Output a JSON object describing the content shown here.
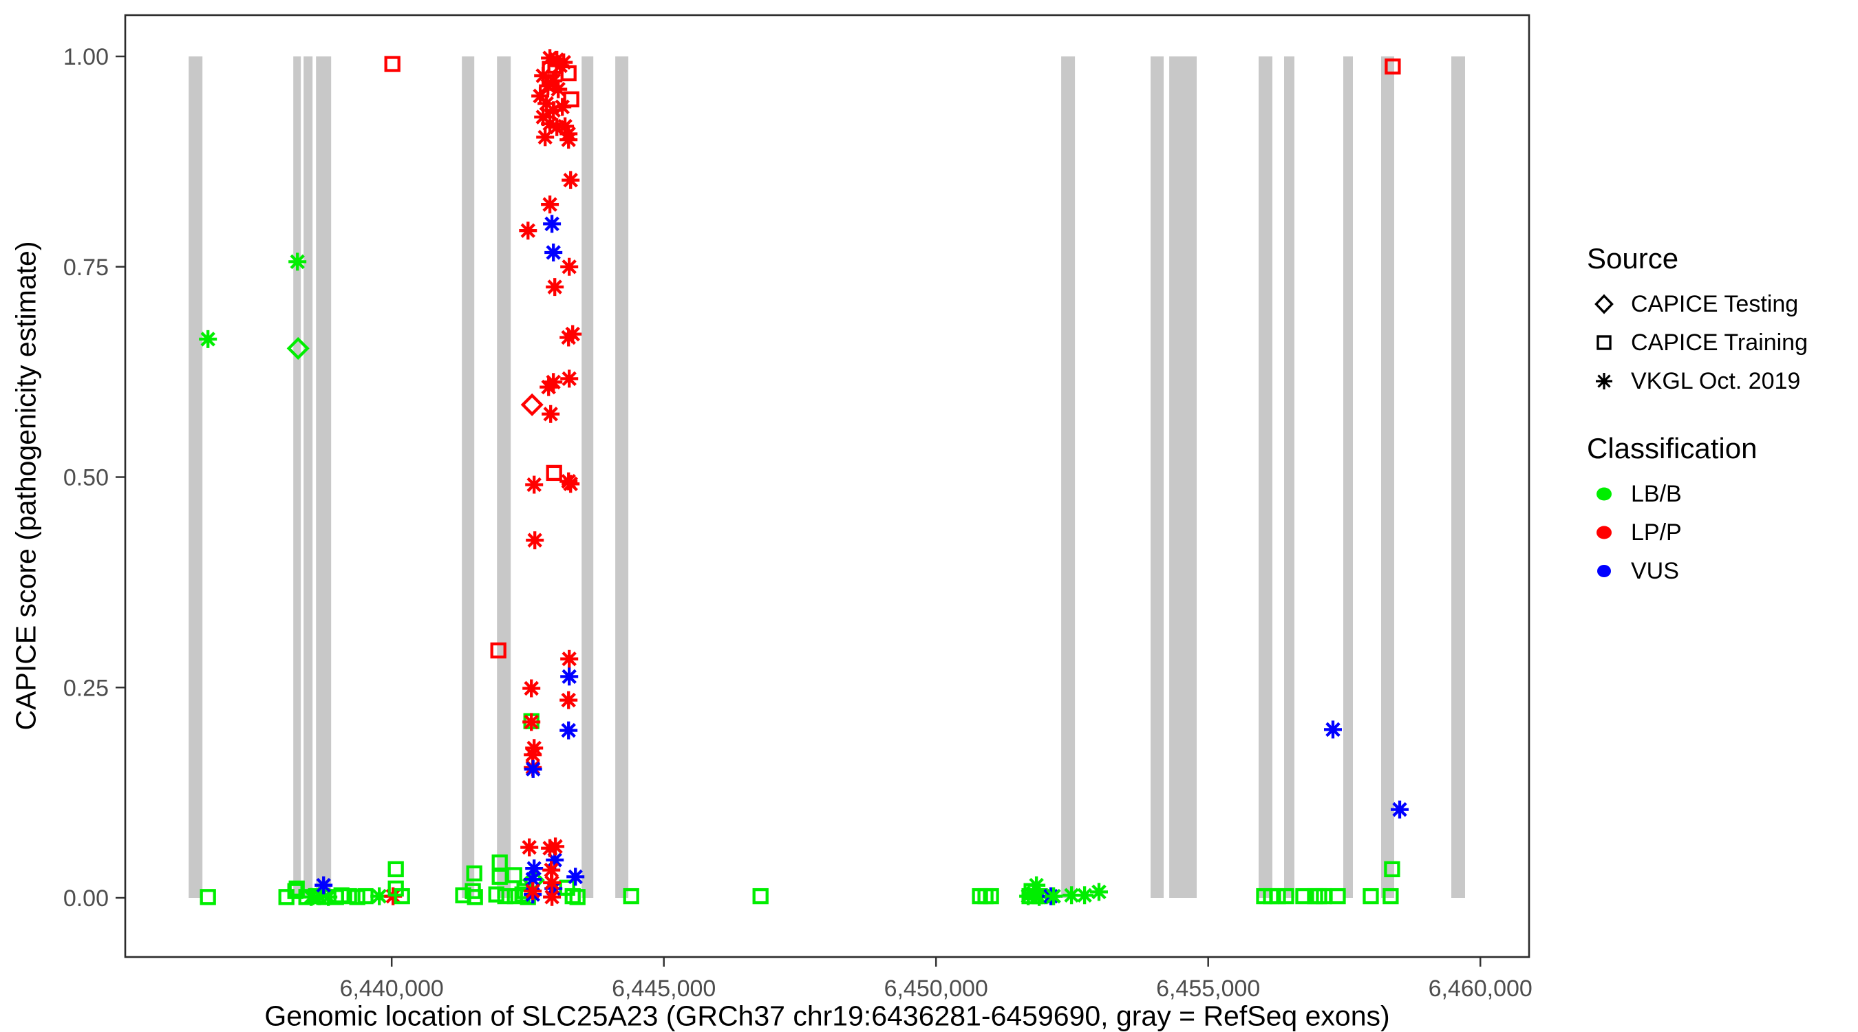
{
  "figure": {
    "y_axis_title": "CAPICE score (pathogenicity estimate)",
    "x_axis_title": "Genomic location of SLC25A23 (GRCh37 chr19:6436281-6459690, gray = RefSeq exons)",
    "colors": {
      "lbb": "#00EE00",
      "lpp": "#FF0000",
      "vus": "#0000FF",
      "exon": "#C8C8C8",
      "tick_text": "#4D4D4D",
      "axis": "#333333"
    }
  },
  "legend": {
    "source_title": "Source",
    "source_items": [
      {
        "shape": "diamond",
        "label": "CAPICE Testing"
      },
      {
        "shape": "square",
        "label": "CAPICE Training"
      },
      {
        "shape": "asterisk",
        "label": "VKGL Oct. 2019"
      }
    ],
    "classification_title": "Classification",
    "classification_items": [
      {
        "color_key": "lbb",
        "label": "LB/B"
      },
      {
        "color_key": "lpp",
        "label": "LP/P"
      },
      {
        "color_key": "vus",
        "label": "VUS"
      }
    ]
  },
  "chart_data": {
    "type": "scatter",
    "title": "",
    "xlabel": "Genomic location of SLC25A23 (GRCh37 chr19:6436281-6459690, gray = RefSeq exons)",
    "ylabel": "CAPICE score (pathogenicity estimate)",
    "grid": false,
    "legend_position": "right",
    "x_domain": [
      6435105,
      6460895
    ],
    "y_domain": [
      -0.07,
      1.05
    ],
    "x_ticks": [
      {
        "value": 6440000,
        "label": "6,440,000"
      },
      {
        "value": 6445000,
        "label": "6,445,000"
      },
      {
        "value": 6450000,
        "label": "6,450,000"
      },
      {
        "value": 6455000,
        "label": "6,455,000"
      },
      {
        "value": 6460000,
        "label": "6,460,000"
      }
    ],
    "y_ticks": [
      {
        "value": 0.0,
        "label": "0.00"
      },
      {
        "value": 0.25,
        "label": "0.25"
      },
      {
        "value": 0.5,
        "label": "0.50"
      },
      {
        "value": 0.75,
        "label": "0.75"
      },
      {
        "value": 1.0,
        "label": "1.00"
      }
    ],
    "exons_bp": [
      [
        6436271,
        6436524
      ],
      [
        6438192,
        6438331
      ],
      [
        6438382,
        6438546
      ],
      [
        6438609,
        6438887
      ],
      [
        6441289,
        6441517
      ],
      [
        6441934,
        6442187
      ],
      [
        6443489,
        6443704
      ],
      [
        6444108,
        6444348
      ],
      [
        6452299,
        6452552
      ],
      [
        6453942,
        6454182
      ],
      [
        6454284,
        6454789
      ],
      [
        6455927,
        6456180
      ],
      [
        6456395,
        6456585
      ],
      [
        6457482,
        6457659
      ],
      [
        6458177,
        6458417
      ],
      [
        6459466,
        6459719
      ]
    ],
    "exon_y_range": [
      0.0,
      1.0
    ],
    "points": [
      {
        "x": 6436625,
        "y": 0.664,
        "s": "a",
        "c": "lbb"
      },
      {
        "x": 6436625,
        "y": 0.001,
        "s": "q",
        "c": "lbb"
      },
      {
        "x": 6438268,
        "y": 0.756,
        "s": "a",
        "c": "lbb"
      },
      {
        "x": 6438281,
        "y": 0.653,
        "s": "d",
        "c": "lbb"
      },
      {
        "x": 6438066,
        "y": 0.001,
        "s": "q",
        "c": "lbb"
      },
      {
        "x": 6438230,
        "y": 0.008,
        "s": "q",
        "c": "lbb"
      },
      {
        "x": 6438256,
        "y": 0.011,
        "s": "q",
        "c": "lbb"
      },
      {
        "x": 6438432,
        "y": 0.001,
        "s": "q",
        "c": "lbb"
      },
      {
        "x": 6438609,
        "y": 0.002,
        "s": "q",
        "c": "lbb"
      },
      {
        "x": 6438761,
        "y": 0.001,
        "s": "q",
        "c": "lbb"
      },
      {
        "x": 6438976,
        "y": 0.001,
        "s": "q",
        "c": "lbb"
      },
      {
        "x": 6439077,
        "y": 0.003,
        "s": "q",
        "c": "lbb"
      },
      {
        "x": 6439216,
        "y": 0.002,
        "s": "q",
        "c": "lbb"
      },
      {
        "x": 6439368,
        "y": 0.001,
        "s": "q",
        "c": "lbb"
      },
      {
        "x": 6439519,
        "y": 0.002,
        "s": "q",
        "c": "lbb"
      },
      {
        "x": 6438521,
        "y": 0.001,
        "s": "a",
        "c": "lbb"
      },
      {
        "x": 6438672,
        "y": 0.002,
        "s": "a",
        "c": "lbb"
      },
      {
        "x": 6438837,
        "y": 0.001,
        "s": "a",
        "c": "lbb"
      },
      {
        "x": 6438748,
        "y": 0.015,
        "s": "a",
        "c": "vus"
      },
      {
        "x": 6439772,
        "y": 0.002,
        "s": "a",
        "c": "lbb"
      },
      {
        "x": 6440025,
        "y": 0.002,
        "s": "a",
        "c": "lpp"
      },
      {
        "x": 6440076,
        "y": 0.034,
        "s": "q",
        "c": "lbb"
      },
      {
        "x": 6440076,
        "y": 0.011,
        "s": "q",
        "c": "lbb"
      },
      {
        "x": 6440190,
        "y": 0.002,
        "s": "q",
        "c": "lbb"
      },
      {
        "x": 6440013,
        "y": 0.991,
        "s": "q",
        "c": "lpp"
      },
      {
        "x": 6441314,
        "y": 0.003,
        "s": "q",
        "c": "lbb"
      },
      {
        "x": 6441517,
        "y": 0.029,
        "s": "q",
        "c": "lbb"
      },
      {
        "x": 6441491,
        "y": 0.008,
        "s": "q",
        "c": "lbb"
      },
      {
        "x": 6441530,
        "y": 0.001,
        "s": "q",
        "c": "lbb"
      },
      {
        "x": 6441985,
        "y": 0.042,
        "s": "q",
        "c": "lbb"
      },
      {
        "x": 6441985,
        "y": 0.025,
        "s": "q",
        "c": "lbb"
      },
      {
        "x": 6442250,
        "y": 0.027,
        "s": "q",
        "c": "lbb"
      },
      {
        "x": 6441922,
        "y": 0.004,
        "s": "q",
        "c": "lbb"
      },
      {
        "x": 6442086,
        "y": 0.002,
        "s": "q",
        "c": "lbb"
      },
      {
        "x": 6442263,
        "y": 0.002,
        "s": "q",
        "c": "lbb"
      },
      {
        "x": 6442402,
        "y": 0.004,
        "s": "q",
        "c": "lbb"
      },
      {
        "x": 6442503,
        "y": 0.001,
        "s": "q",
        "c": "lbb"
      },
      {
        "x": 6442440,
        "y": 0.008,
        "s": "q",
        "c": "lbb"
      },
      {
        "x": 6443224,
        "y": 0.012,
        "s": "q",
        "c": "lbb"
      },
      {
        "x": 6443325,
        "y": 0.002,
        "s": "q",
        "c": "lbb"
      },
      {
        "x": 6443413,
        "y": 0.001,
        "s": "q",
        "c": "lbb"
      },
      {
        "x": 6442605,
        "y": 0.021,
        "s": "d",
        "c": "lbb"
      },
      {
        "x": 6442617,
        "y": 0.035,
        "s": "a",
        "c": "vus"
      },
      {
        "x": 6442592,
        "y": 0.022,
        "s": "a",
        "c": "vus"
      },
      {
        "x": 6442996,
        "y": 0.045,
        "s": "a",
        "c": "vus"
      },
      {
        "x": 6442592,
        "y": 0.004,
        "s": "a",
        "c": "vus"
      },
      {
        "x": 6442971,
        "y": 0.011,
        "s": "a",
        "c": "vus"
      },
      {
        "x": 6443375,
        "y": 0.025,
        "s": "a",
        "c": "vus"
      },
      {
        "x": 6442528,
        "y": 0.06,
        "s": "a",
        "c": "lpp"
      },
      {
        "x": 6442907,
        "y": 0.059,
        "s": "a",
        "c": "lpp"
      },
      {
        "x": 6442933,
        "y": 0.033,
        "s": "a",
        "c": "lpp"
      },
      {
        "x": 6442945,
        "y": 0.018,
        "s": "a",
        "c": "lpp"
      },
      {
        "x": 6442592,
        "y": 0.008,
        "s": "a",
        "c": "lpp"
      },
      {
        "x": 6442945,
        "y": 0.001,
        "s": "a",
        "c": "lpp"
      },
      {
        "x": 6443008,
        "y": 0.061,
        "s": "a",
        "c": "lpp"
      },
      {
        "x": 6444399,
        "y": 0.002,
        "s": "q",
        "c": "lbb"
      },
      {
        "x": 6446776,
        "y": 0.002,
        "s": "q",
        "c": "lbb"
      },
      {
        "x": 6442907,
        "y": 0.998,
        "s": "a",
        "c": "lpp"
      },
      {
        "x": 6443034,
        "y": 0.996,
        "s": "a",
        "c": "lpp"
      },
      {
        "x": 6443160,
        "y": 0.993,
        "s": "a",
        "c": "lpp"
      },
      {
        "x": 6442781,
        "y": 0.977,
        "s": "a",
        "c": "lpp"
      },
      {
        "x": 6442870,
        "y": 0.965,
        "s": "a",
        "c": "lpp"
      },
      {
        "x": 6442971,
        "y": 0.971,
        "s": "a",
        "c": "lpp"
      },
      {
        "x": 6443059,
        "y": 0.961,
        "s": "a",
        "c": "lpp"
      },
      {
        "x": 6442730,
        "y": 0.953,
        "s": "a",
        "c": "lpp"
      },
      {
        "x": 6442844,
        "y": 0.944,
        "s": "a",
        "c": "lpp"
      },
      {
        "x": 6442971,
        "y": 0.936,
        "s": "a",
        "c": "lpp"
      },
      {
        "x": 6443135,
        "y": 0.94,
        "s": "a",
        "c": "lpp"
      },
      {
        "x": 6442781,
        "y": 0.928,
        "s": "a",
        "c": "lpp"
      },
      {
        "x": 6442907,
        "y": 0.92,
        "s": "a",
        "c": "lpp"
      },
      {
        "x": 6443034,
        "y": 0.916,
        "s": "a",
        "c": "lpp"
      },
      {
        "x": 6443185,
        "y": 0.917,
        "s": "a",
        "c": "lpp"
      },
      {
        "x": 6443249,
        "y": 0.908,
        "s": "a",
        "c": "lpp"
      },
      {
        "x": 6443249,
        "y": 0.901,
        "s": "a",
        "c": "lpp"
      },
      {
        "x": 6442819,
        "y": 0.904,
        "s": "a",
        "c": "lpp"
      },
      {
        "x": 6443097,
        "y": 0.989,
        "s": "a",
        "c": "lpp"
      },
      {
        "x": 6443008,
        "y": 0.989,
        "s": "q",
        "c": "lpp"
      },
      {
        "x": 6443249,
        "y": 0.98,
        "s": "q",
        "c": "lpp"
      },
      {
        "x": 6443299,
        "y": 0.949,
        "s": "q",
        "c": "lpp"
      },
      {
        "x": 6442907,
        "y": 0.985,
        "s": "q",
        "c": "lpp"
      },
      {
        "x": 6443287,
        "y": 0.853,
        "s": "a",
        "c": "lpp"
      },
      {
        "x": 6442907,
        "y": 0.824,
        "s": "a",
        "c": "lpp"
      },
      {
        "x": 6442504,
        "y": 0.793,
        "s": "a",
        "c": "lpp"
      },
      {
        "x": 6442945,
        "y": 0.801,
        "s": "a",
        "c": "vus"
      },
      {
        "x": 6442971,
        "y": 0.767,
        "s": "a",
        "c": "vus"
      },
      {
        "x": 6443262,
        "y": 0.75,
        "s": "a",
        "c": "lpp"
      },
      {
        "x": 6442996,
        "y": 0.726,
        "s": "a",
        "c": "lpp"
      },
      {
        "x": 6443249,
        "y": 0.666,
        "s": "a",
        "c": "lpp"
      },
      {
        "x": 6443325,
        "y": 0.67,
        "s": "a",
        "c": "lpp"
      },
      {
        "x": 6443262,
        "y": 0.617,
        "s": "a",
        "c": "lpp"
      },
      {
        "x": 6442971,
        "y": 0.613,
        "s": "a",
        "c": "lpp"
      },
      {
        "x": 6442882,
        "y": 0.607,
        "s": "a",
        "c": "lpp"
      },
      {
        "x": 6442579,
        "y": 0.586,
        "s": "d",
        "c": "lpp"
      },
      {
        "x": 6442920,
        "y": 0.575,
        "s": "a",
        "c": "lpp"
      },
      {
        "x": 6442983,
        "y": 0.505,
        "s": "q",
        "c": "lpp"
      },
      {
        "x": 6443249,
        "y": 0.495,
        "s": "a",
        "c": "lpp"
      },
      {
        "x": 6442617,
        "y": 0.491,
        "s": "a",
        "c": "lpp"
      },
      {
        "x": 6443287,
        "y": 0.492,
        "s": "a",
        "c": "lpp"
      },
      {
        "x": 6442630,
        "y": 0.425,
        "s": "a",
        "c": "lpp"
      },
      {
        "x": 6441960,
        "y": 0.294,
        "s": "q",
        "c": "lpp"
      },
      {
        "x": 6443262,
        "y": 0.284,
        "s": "a",
        "c": "lpp"
      },
      {
        "x": 6443262,
        "y": 0.263,
        "s": "a",
        "c": "vus"
      },
      {
        "x": 6442567,
        "y": 0.249,
        "s": "a",
        "c": "lpp"
      },
      {
        "x": 6443249,
        "y": 0.235,
        "s": "a",
        "c": "lpp"
      },
      {
        "x": 6442567,
        "y": 0.21,
        "s": "q",
        "c": "lbb"
      },
      {
        "x": 6442567,
        "y": 0.209,
        "s": "a",
        "c": "lpp"
      },
      {
        "x": 6443249,
        "y": 0.199,
        "s": "a",
        "c": "vus"
      },
      {
        "x": 6442617,
        "y": 0.178,
        "s": "a",
        "c": "lpp"
      },
      {
        "x": 6442592,
        "y": 0.17,
        "s": "a",
        "c": "lpp"
      },
      {
        "x": 6442592,
        "y": 0.155,
        "s": "a",
        "c": "lpp"
      },
      {
        "x": 6442598,
        "y": 0.153,
        "s": "a",
        "c": "vus"
      },
      {
        "x": 6450808,
        "y": 0.002,
        "s": "q",
        "c": "lbb"
      },
      {
        "x": 6450909,
        "y": 0.002,
        "s": "q",
        "c": "lbb"
      },
      {
        "x": 6451010,
        "y": 0.002,
        "s": "q",
        "c": "lbb"
      },
      {
        "x": 6451718,
        "y": 0.002,
        "s": "q",
        "c": "lbb"
      },
      {
        "x": 6451819,
        "y": 0.002,
        "s": "q",
        "c": "lbb"
      },
      {
        "x": 6451907,
        "y": 0.002,
        "s": "q",
        "c": "lbb"
      },
      {
        "x": 6451756,
        "y": 0.008,
        "s": "q",
        "c": "lbb"
      },
      {
        "x": 6451844,
        "y": 0.015,
        "s": "a",
        "c": "lbb"
      },
      {
        "x": 6451794,
        "y": 0.006,
        "s": "a",
        "c": "lbb"
      },
      {
        "x": 6451693,
        "y": 0.002,
        "s": "a",
        "c": "lbb"
      },
      {
        "x": 6451895,
        "y": 0.001,
        "s": "a",
        "c": "lbb"
      },
      {
        "x": 6452110,
        "y": 0.002,
        "s": "a",
        "c": "vus"
      },
      {
        "x": 6452160,
        "y": 0.002,
        "s": "a",
        "c": "lbb"
      },
      {
        "x": 6452489,
        "y": 0.003,
        "s": "a",
        "c": "lbb"
      },
      {
        "x": 6452729,
        "y": 0.003,
        "s": "a",
        "c": "lbb"
      },
      {
        "x": 6452994,
        "y": 0.007,
        "s": "a",
        "c": "lbb"
      },
      {
        "x": 6456028,
        "y": 0.002,
        "s": "q",
        "c": "lbb"
      },
      {
        "x": 6456154,
        "y": 0.002,
        "s": "q",
        "c": "lbb"
      },
      {
        "x": 6456281,
        "y": 0.002,
        "s": "q",
        "c": "lbb"
      },
      {
        "x": 6456432,
        "y": 0.002,
        "s": "q",
        "c": "lbb"
      },
      {
        "x": 6456748,
        "y": 0.002,
        "s": "q",
        "c": "lbb"
      },
      {
        "x": 6456963,
        "y": 0.002,
        "s": "q",
        "c": "lbb"
      },
      {
        "x": 6457039,
        "y": 0.002,
        "s": "q",
        "c": "lbb"
      },
      {
        "x": 6457127,
        "y": 0.002,
        "s": "q",
        "c": "lbb"
      },
      {
        "x": 6457380,
        "y": 0.002,
        "s": "q",
        "c": "lbb"
      },
      {
        "x": 6457987,
        "y": 0.002,
        "s": "q",
        "c": "lbb"
      },
      {
        "x": 6458353,
        "y": 0.002,
        "s": "q",
        "c": "lbb"
      },
      {
        "x": 6458378,
        "y": 0.034,
        "s": "q",
        "c": "lbb"
      },
      {
        "x": 6457292,
        "y": 0.2,
        "s": "a",
        "c": "vus"
      },
      {
        "x": 6458518,
        "y": 0.105,
        "s": "a",
        "c": "vus"
      },
      {
        "x": 6458391,
        "y": 0.988,
        "s": "q",
        "c": "lpp"
      }
    ]
  }
}
